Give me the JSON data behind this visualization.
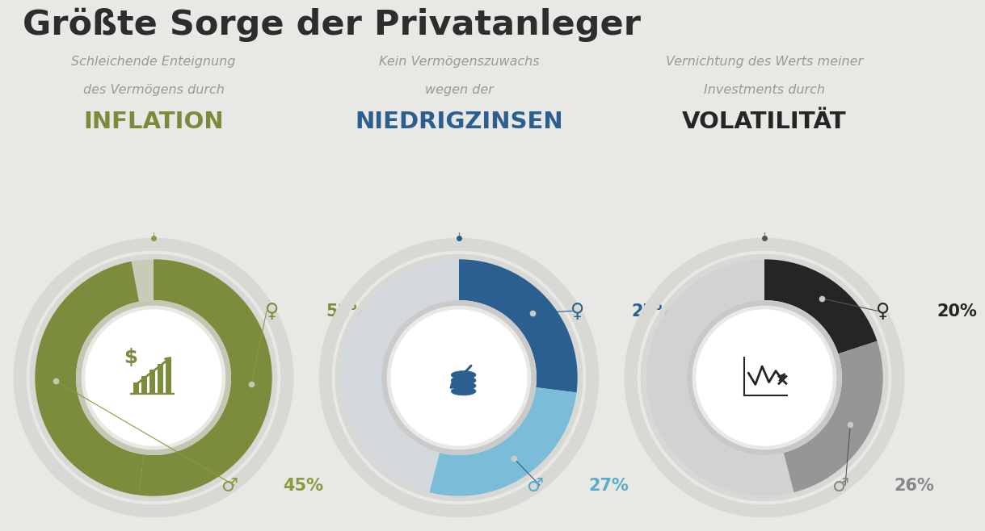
{
  "title": "Größte Sorge der Privatanleger",
  "background_color": "#e8e8e5",
  "charts": [
    {
      "col_idx": 0,
      "subtitle_line1": "Schleichende Enteignung",
      "subtitle_line2": "des Vermögens durch",
      "keyword": "INFLATION",
      "keyword_color": "#7b8b3c",
      "female_pct": 52,
      "male_pct": 45,
      "color_female": "#7b8c3c",
      "color_male": "#7b8c3c",
      "color_rest": "#c9cbb8",
      "color_outer_ring": "#d8d8d5",
      "color_inner_ring": "#c5c7b5",
      "leader_color": "#8a9a40",
      "label_color_female": "#7b8c3c",
      "label_color_male": "#8a9a40"
    },
    {
      "col_idx": 1,
      "subtitle_line1": "Kein Vermögenszuwachs",
      "subtitle_line2": "wegen der",
      "keyword": "NIEDRIGZINSEN",
      "keyword_color": "#2a5f8f",
      "female_pct": 27,
      "male_pct": 27,
      "color_female": "#2a5f8f",
      "color_male": "#7bbdd8",
      "color_rest": "#d2d8dc",
      "color_outer_ring": "#d8d8d5",
      "color_inner_ring": "#cacaca",
      "leader_color": "#2a5f8f",
      "label_color_female": "#2a5f8f",
      "label_color_male": "#5aaccc"
    },
    {
      "col_idx": 2,
      "subtitle_line1": "Vernichtung des Werts meiner",
      "subtitle_line2": "Investments durch",
      "keyword": "VOLATILITÄT",
      "keyword_color": "#252525",
      "female_pct": 20,
      "male_pct": 26,
      "color_female": "#252525",
      "color_male": "#969696",
      "color_rest": "#d2d2d2",
      "color_outer_ring": "#d8d8d5",
      "color_inner_ring": "#c8c8c8",
      "leader_color": "#555555",
      "label_color_female": "#252525",
      "label_color_male": "#888888"
    }
  ]
}
